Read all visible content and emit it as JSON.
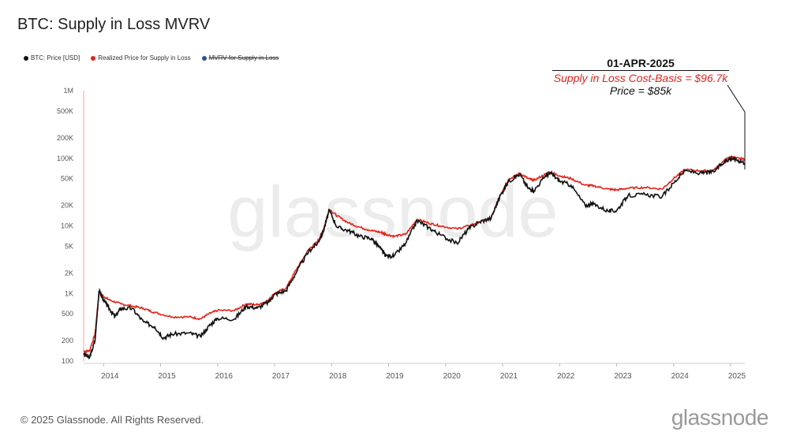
{
  "title": "BTC: Supply in Loss MVRV",
  "footer": "© 2025 Glassnode. All Rights Reserved.",
  "brand": "glassnode",
  "watermark": "glassnode",
  "annotation": {
    "date": "01-APR-2025",
    "line1": "Supply in Loss Cost-Basis = $96.7k",
    "line2": "Price = $85k"
  },
  "colors": {
    "price": "#111111",
    "realized": "#e0241b",
    "mvrv": "#2c4f9e"
  },
  "chart_data": {
    "type": "line",
    "title": "BTC: Supply in Loss MVRV",
    "yscale": "log",
    "ylim": [
      100,
      1000000
    ],
    "xlim": [
      2013.65,
      2025.25
    ],
    "y_ticks": [
      100,
      200,
      500,
      1000,
      2000,
      5000,
      10000,
      20000,
      50000,
      100000,
      200000,
      500000,
      1000000
    ],
    "y_tick_labels": [
      "100",
      "200",
      "500",
      "1K",
      "2K",
      "5K",
      "10K",
      "20K",
      "50K",
      "100K",
      "200K",
      "500K",
      "1M"
    ],
    "x_ticks": [
      2014,
      2015,
      2016,
      2017,
      2018,
      2019,
      2020,
      2021,
      2022,
      2023,
      2024,
      2025
    ],
    "x_tick_labels": [
      "2014",
      "2015",
      "2016",
      "2017",
      "2018",
      "2019",
      "2020",
      "2021",
      "2022",
      "2023",
      "2024",
      "2025"
    ],
    "legend_position": "top-left",
    "grid": false,
    "series": [
      {
        "name": "BTC: Price [USD]",
        "x": [
          2013.65,
          2013.75,
          2013.85,
          2013.92,
          2014.0,
          2014.1,
          2014.2,
          2014.3,
          2014.5,
          2014.7,
          2014.9,
          2015.05,
          2015.2,
          2015.5,
          2015.7,
          2015.85,
          2016.0,
          2016.3,
          2016.5,
          2016.7,
          2016.9,
          2017.0,
          2017.2,
          2017.4,
          2017.6,
          2017.75,
          2017.85,
          2017.96,
          2018.1,
          2018.3,
          2018.5,
          2018.7,
          2018.87,
          2018.95,
          2019.1,
          2019.3,
          2019.5,
          2019.7,
          2019.9,
          2020.2,
          2020.4,
          2020.6,
          2020.8,
          2020.95,
          2021.1,
          2021.3,
          2021.45,
          2021.55,
          2021.75,
          2021.85,
          2022.0,
          2022.2,
          2022.45,
          2022.6,
          2022.85,
          2023.0,
          2023.2,
          2023.5,
          2023.8,
          2024.0,
          2024.2,
          2024.5,
          2024.7,
          2024.9,
          2025.0,
          2025.1,
          2025.25
        ],
        "values": [
          130,
          110,
          200,
          1100,
          800,
          600,
          450,
          600,
          600,
          380,
          320,
          220,
          250,
          260,
          230,
          330,
          430,
          420,
          650,
          610,
          750,
          970,
          1100,
          2200,
          4200,
          5500,
          8000,
          17000,
          9500,
          8500,
          7000,
          6500,
          4500,
          3600,
          3600,
          5500,
          12000,
          9500,
          7400,
          5500,
          9000,
          11500,
          13000,
          27000,
          45000,
          58000,
          36000,
          33000,
          55000,
          60000,
          46000,
          40000,
          20000,
          21000,
          16500,
          16800,
          28000,
          29000,
          27000,
          43000,
          65000,
          60000,
          63000,
          90000,
          100000,
          96000,
          85000
        ]
      },
      {
        "name": "Realized Price for Supply in Loss",
        "x": [
          2013.65,
          2013.75,
          2013.85,
          2013.92,
          2014.0,
          2014.1,
          2014.3,
          2014.5,
          2014.7,
          2014.9,
          2015.2,
          2015.5,
          2015.7,
          2015.85,
          2016.0,
          2016.3,
          2016.5,
          2016.7,
          2016.9,
          2017.0,
          2017.2,
          2017.4,
          2017.6,
          2017.75,
          2017.85,
          2017.96,
          2018.1,
          2018.3,
          2018.5,
          2018.7,
          2018.87,
          2018.95,
          2019.1,
          2019.3,
          2019.5,
          2019.7,
          2019.9,
          2020.2,
          2020.4,
          2020.6,
          2020.8,
          2020.95,
          2021.1,
          2021.3,
          2021.45,
          2021.55,
          2021.75,
          2021.85,
          2022.0,
          2022.2,
          2022.45,
          2022.6,
          2022.85,
          2023.0,
          2023.2,
          2023.5,
          2023.8,
          2024.0,
          2024.2,
          2024.5,
          2024.7,
          2024.9,
          2025.0,
          2025.1,
          2025.25
        ],
        "values": [
          140,
          140,
          250,
          1050,
          900,
          800,
          700,
          650,
          600,
          520,
          450,
          450,
          420,
          500,
          560,
          560,
          700,
          680,
          800,
          1000,
          1200,
          2400,
          4500,
          5800,
          8500,
          17500,
          14000,
          11000,
          9500,
          8500,
          8000,
          7500,
          7000,
          7500,
          12500,
          11000,
          10000,
          9000,
          10000,
          11500,
          13000,
          28000,
          48000,
          60000,
          50000,
          47000,
          58000,
          62000,
          55000,
          50000,
          40000,
          39000,
          35000,
          34000,
          36000,
          37000,
          35000,
          50000,
          68000,
          65000,
          66000,
          95000,
          104000,
          100000,
          96700
        ]
      },
      {
        "name": "MVRV for Supply in Loss",
        "x": [],
        "values": []
      }
    ]
  }
}
